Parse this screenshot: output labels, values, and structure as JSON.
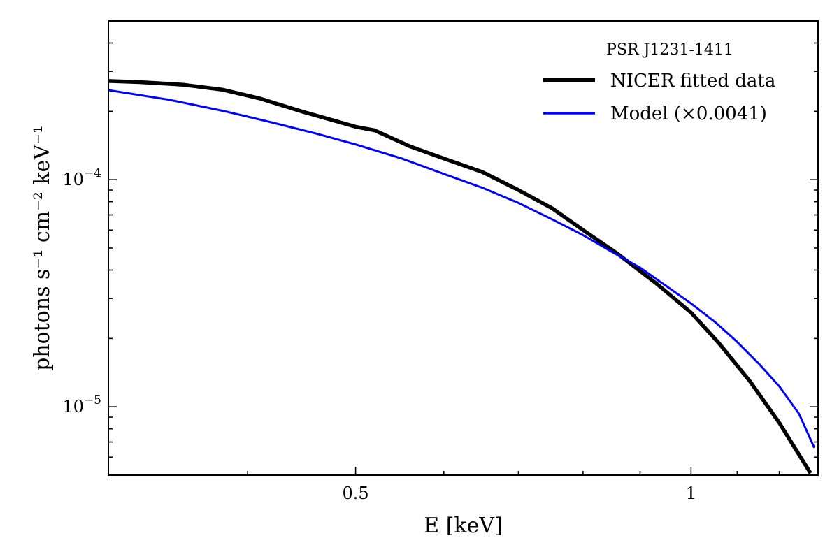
{
  "chart_data": {
    "type": "line",
    "xlabel": "E [keV]",
    "ylabel": "photons s⁻¹ cm⁻² keV⁻¹",
    "xscale": "log",
    "yscale": "log",
    "xlim": [
      0.3,
      1.3
    ],
    "ylim": [
      5e-06,
      0.0005
    ],
    "x_ticks": [
      {
        "value": 0.5,
        "label": "0.5"
      },
      {
        "value": 1,
        "label": "1"
      }
    ],
    "y_ticks": [
      {
        "value": 0.0001,
        "label": "10",
        "exp": "−4"
      },
      {
        "value": 1e-05,
        "label": "10",
        "exp": "−5"
      }
    ],
    "grid": false,
    "legend": {
      "title": "PSR J1231-1411",
      "placement": "top-right"
    },
    "series": [
      {
        "name": "NICER fitted data",
        "color": "#000000",
        "x": [
          0.3,
          0.32,
          0.35,
          0.38,
          0.41,
          0.45,
          0.5,
          0.52,
          0.56,
          0.6,
          0.65,
          0.7,
          0.75,
          0.8,
          0.86,
          0.93,
          1.0,
          1.06,
          1.13,
          1.2,
          1.28
        ],
        "y": [
          0.000272,
          0.000269,
          0.000262,
          0.000249,
          0.000228,
          0.000198,
          0.000171,
          0.000165,
          0.00014,
          0.000124,
          0.000108,
          9e-05,
          7.5e-05,
          6e-05,
          4.7e-05,
          3.5e-05,
          2.6e-05,
          1.9e-05,
          1.29e-05,
          8.5e-06,
          5.1e-06
        ]
      },
      {
        "name": "Model (×0.0041)",
        "color": "#0000ff",
        "x": [
          0.3,
          0.34,
          0.38,
          0.42,
          0.46,
          0.5,
          0.55,
          0.6,
          0.65,
          0.7,
          0.75,
          0.8,
          0.85,
          0.9,
          0.95,
          1.0,
          1.05,
          1.1,
          1.15,
          1.2,
          1.25,
          1.29
        ],
        "y": [
          0.000248,
          0.000225,
          0.000201,
          0.000179,
          0.00016,
          0.000143,
          0.000124,
          0.000106,
          9.2e-05,
          7.9e-05,
          6.7e-05,
          5.7e-05,
          4.8e-05,
          4.1e-05,
          3.4e-05,
          2.85e-05,
          2.37e-05,
          1.93e-05,
          1.55e-05,
          1.23e-05,
          9.3e-06,
          6.6e-06
        ]
      }
    ]
  }
}
